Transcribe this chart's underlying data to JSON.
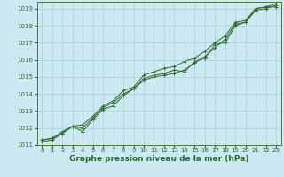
{
  "xlabel": "Graphe pression niveau de la mer (hPa)",
  "bg_color": "#cce8f0",
  "grid_color": "#aad4e0",
  "line_color": "#2d6a2d",
  "marker_color": "#2d6a2d",
  "xlim": [
    -0.5,
    23.5
  ],
  "ylim": [
    1011,
    1019.4
  ],
  "xticks": [
    0,
    1,
    2,
    3,
    4,
    5,
    6,
    7,
    8,
    9,
    10,
    11,
    12,
    13,
    14,
    15,
    16,
    17,
    18,
    19,
    20,
    21,
    22,
    23
  ],
  "yticks": [
    1011,
    1012,
    1013,
    1014,
    1015,
    1016,
    1017,
    1018,
    1019
  ],
  "series": [
    [
      1011.3,
      1011.4,
      1011.7,
      1012.1,
      1012.0,
      1012.6,
      1013.2,
      1013.5,
      1014.0,
      1014.3,
      1014.9,
      1015.1,
      1015.2,
      1015.4,
      1015.3,
      1015.9,
      1016.1,
      1016.9,
      1017.0,
      1018.0,
      1018.2,
      1019.0,
      1019.1,
      1019.1
    ],
    [
      1011.3,
      1011.4,
      1011.8,
      1012.1,
      1011.8,
      1012.5,
      1013.1,
      1013.3,
      1013.9,
      1014.3,
      1014.8,
      1015.0,
      1015.1,
      1015.2,
      1015.4,
      1015.8,
      1016.2,
      1016.7,
      1017.2,
      1018.1,
      1018.2,
      1018.9,
      1019.0,
      1019.2
    ],
    [
      1011.2,
      1011.3,
      1011.7,
      1012.1,
      1012.2,
      1012.7,
      1013.3,
      1013.6,
      1014.2,
      1014.4,
      1015.1,
      1015.3,
      1015.5,
      1015.6,
      1015.9,
      1016.1,
      1016.5,
      1017.0,
      1017.4,
      1018.2,
      1018.3,
      1019.0,
      1019.1,
      1019.3
    ]
  ],
  "xlabel_fontsize": 6.5,
  "tick_fontsize": 5.0,
  "xlabel_fontweight": "bold"
}
